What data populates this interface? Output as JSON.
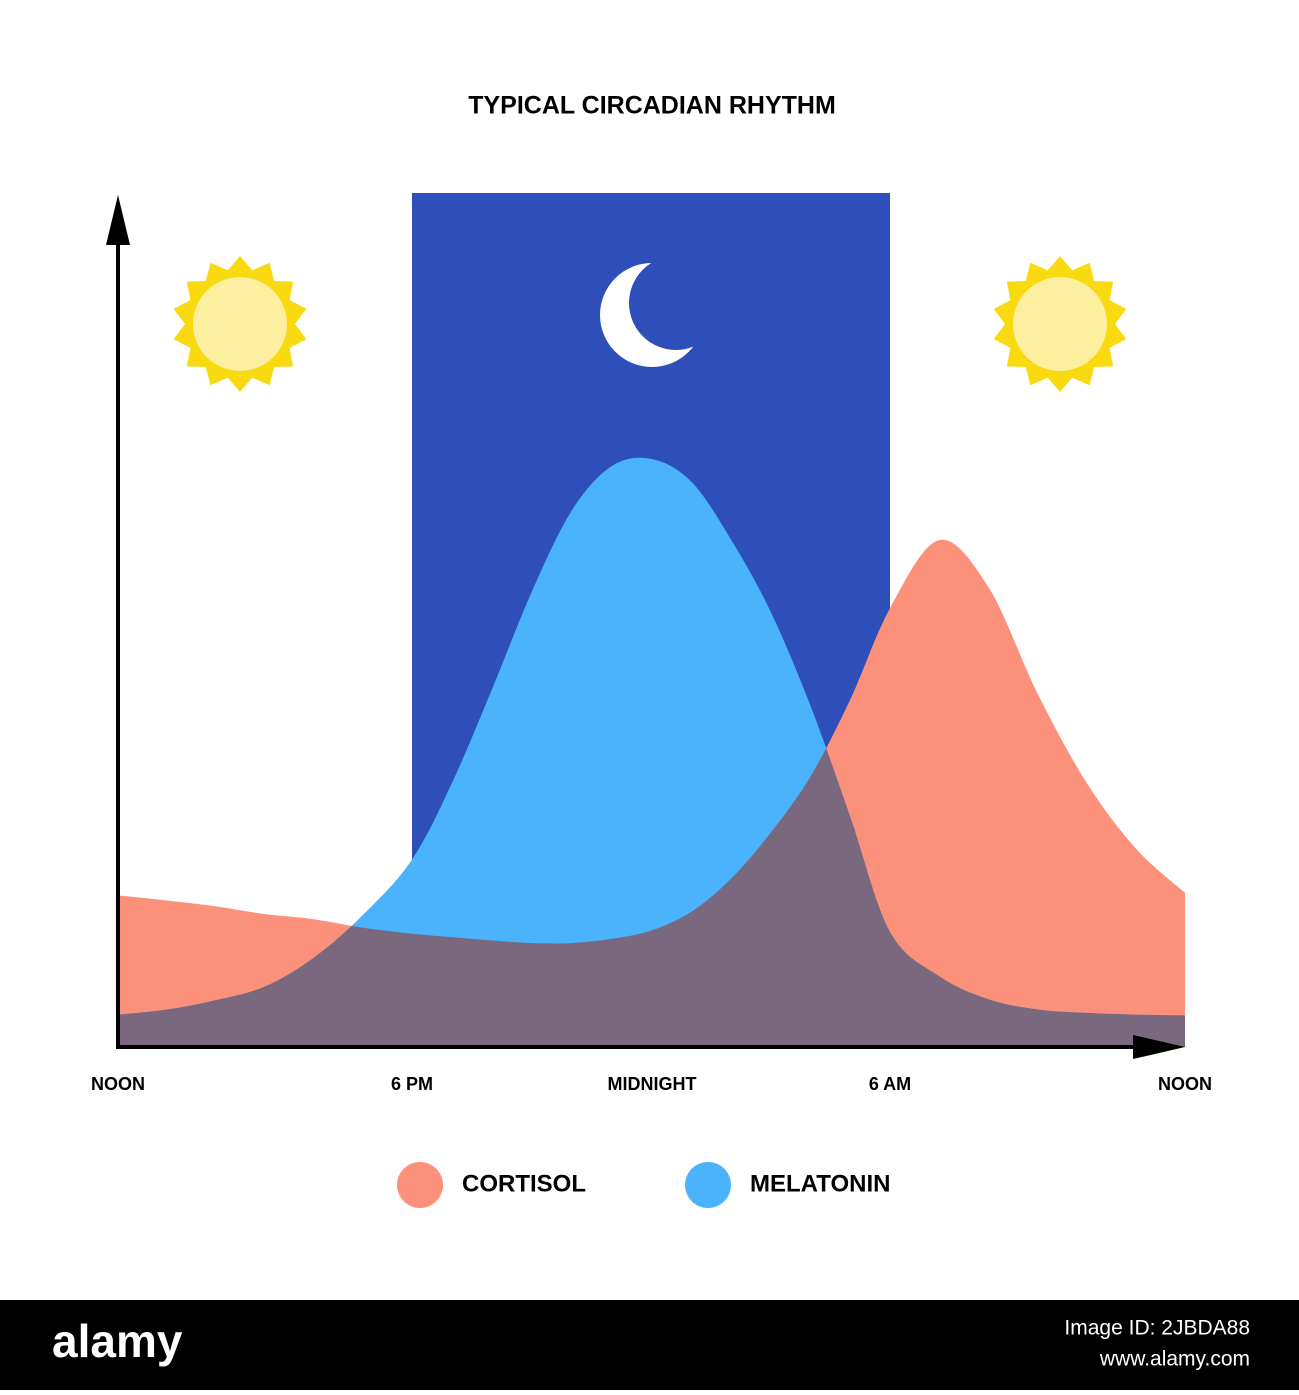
{
  "chart_data": {
    "type": "area",
    "title": "TYPICAL  CIRCADIAN RHYTHM",
    "x": [
      0,
      1,
      2,
      3,
      4,
      5,
      6,
      7,
      8,
      9,
      10,
      11,
      12,
      13,
      14,
      15,
      16,
      17,
      18,
      19,
      20,
      21,
      22,
      23,
      24
    ],
    "xlim": [
      0,
      24
    ],
    "xticks": [
      {
        "value": 0,
        "label": "NOON"
      },
      {
        "value": 6,
        "label": "6 PM"
      },
      {
        "value": 12,
        "label": "MIDNIGHT"
      },
      {
        "value": 18,
        "label": "6 AM"
      },
      {
        "value": 24,
        "label": "NOON"
      }
    ],
    "ylim": [
      0,
      100
    ],
    "series": [
      {
        "name": "CORTISOL",
        "color": "#fb907b",
        "values": [
          17.8,
          17.2,
          16.5,
          15.6,
          15.0,
          14.0,
          13.3,
          12.9,
          12.5,
          12.2,
          12.2,
          12.7,
          13.7,
          15.9,
          19.8,
          25.2,
          31.8,
          40.8,
          51.5,
          59.5,
          54,
          41.5,
          31,
          23.3,
          18.1
        ]
      },
      {
        "name": "MELATONIN",
        "color": "#4ab3fc",
        "values": [
          3.8,
          4.4,
          5.5,
          7.1,
          10.5,
          15.5,
          22,
          31,
          42,
          53.5,
          63,
          68.2,
          69,
          66.3,
          59.5,
          51,
          40,
          27,
          13.5,
          8.3,
          5.6,
          4.4,
          4,
          3.8,
          3.7
        ]
      }
    ],
    "overlap_color": "#7a687e",
    "night_color": "#2e4fba"
  },
  "footer": {
    "brand": "alamy",
    "image_id": "Image ID: 2JBDA88",
    "url": "www.alamy.com"
  }
}
